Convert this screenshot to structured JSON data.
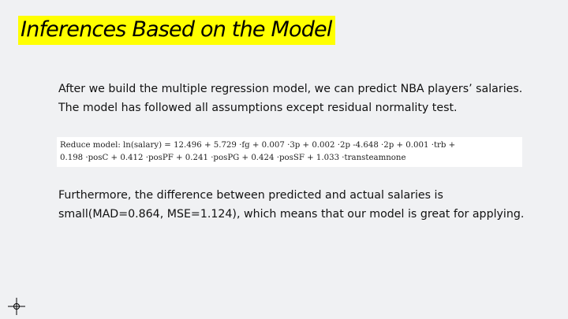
{
  "slide": {
    "title": "Inferences Based on the Model",
    "paragraph1": {
      "line1": "After we build the multiple regression model, we can predict NBA players’    salaries.",
      "line2": "The model has followed all assumptions except residual normality test."
    },
    "formula": {
      "line1": "Reduce model: ln(salary) = 12.496 + 5.729 ·fg + 0.007 ·3p + 0.002 ·2p -4.648 ·2p + 0.001 ·trb +",
      "line2": "0.198 ·posC + 0.412 ·posPF + 0.241 ·posPG + 0.424 ·posSF + 1.033 ·transteamnone"
    },
    "paragraph2": {
      "line1": "Furthermore, the difference between predicted and actual salaries is",
      "line2": "small(MAD=0.864, MSE=1.124), which means that our model is great for applying."
    }
  },
  "icons": {
    "cursor": "crosshair-icon"
  },
  "colors": {
    "background": "#f0f1f3",
    "title_highlight": "#ffff00",
    "formula_background": "#ffffff"
  }
}
